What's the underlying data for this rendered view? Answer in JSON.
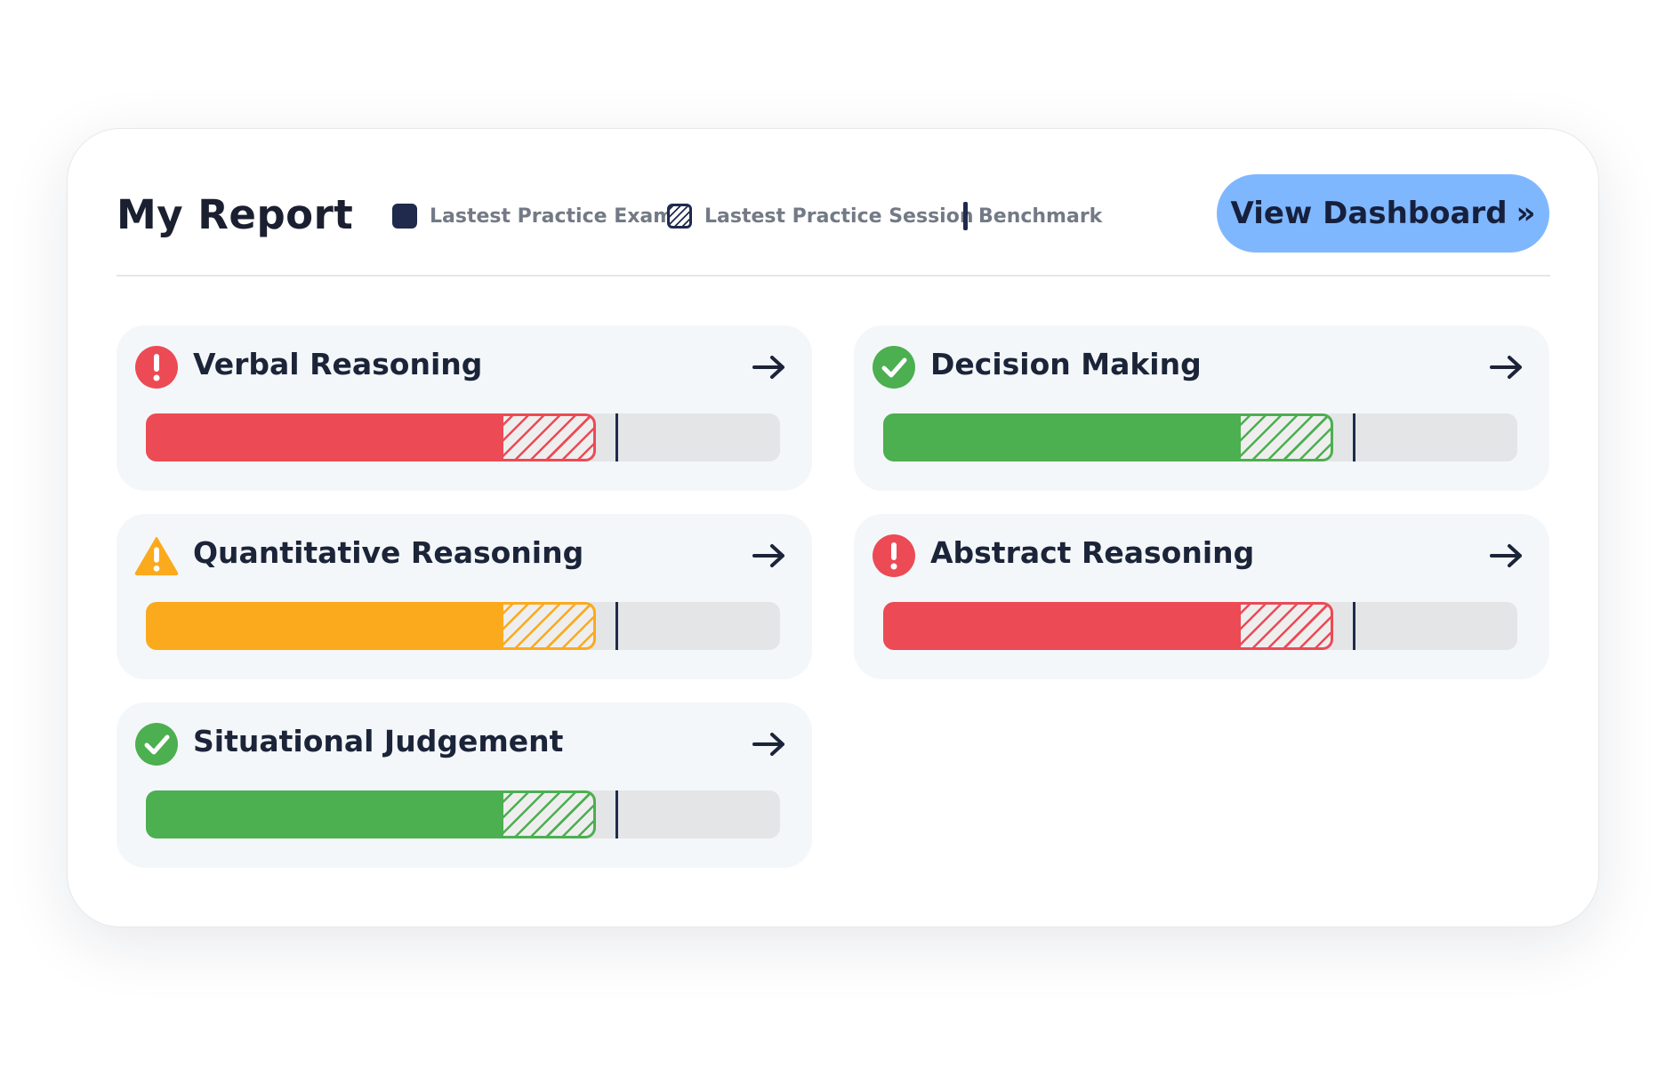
{
  "header": {
    "title": "My Report",
    "dashboard_button": "View Dashboard"
  },
  "legend": [
    {
      "label": "Lastest Practice Exam",
      "icon": "solid-square-icon"
    },
    {
      "label": "Lastest Practice Session",
      "icon": "hatched-square-icon"
    },
    {
      "label": "Benchmark",
      "icon": "vertical-line-icon"
    }
  ],
  "colors": {
    "danger": "#ec4a55",
    "warning": "#fbaa1e",
    "success": "#4caf50",
    "navy": "#1f2a4d",
    "button": "#7fb7ff"
  },
  "sections": [
    {
      "title": "Verbal Reasoning",
      "status": "danger",
      "icon": "exclamation-icon",
      "exam_pct": 56,
      "session_pct": 71,
      "benchmark_pct": 74
    },
    {
      "title": "Decision Making",
      "status": "success",
      "icon": "check-icon",
      "exam_pct": 56,
      "session_pct": 71,
      "benchmark_pct": 74
    },
    {
      "title": "Quantitative Reasoning",
      "status": "warning",
      "icon": "warning-triangle-icon",
      "exam_pct": 56,
      "session_pct": 71,
      "benchmark_pct": 74
    },
    {
      "title": "Abstract Reasoning",
      "status": "danger",
      "icon": "exclamation-icon",
      "exam_pct": 56,
      "session_pct": 71,
      "benchmark_pct": 74
    },
    {
      "title": "Situational Judgement",
      "status": "success",
      "icon": "check-icon",
      "exam_pct": 56,
      "session_pct": 71,
      "benchmark_pct": 74
    }
  ]
}
